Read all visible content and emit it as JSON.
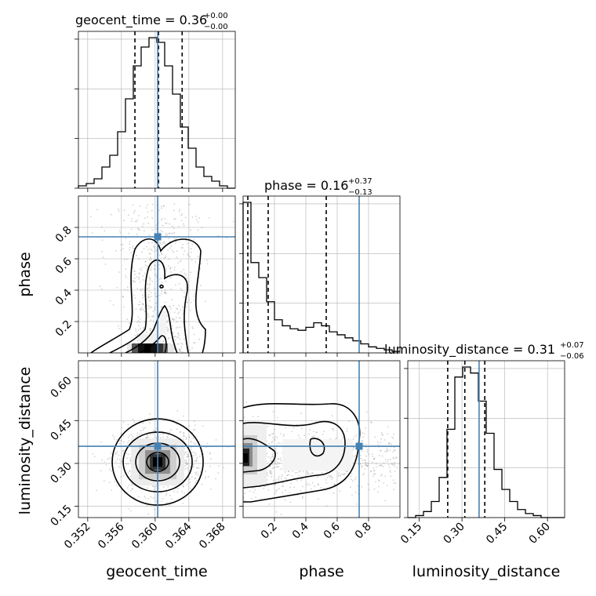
{
  "chart_data": {
    "type": "corner",
    "parameters": [
      "geocent_time",
      "phase",
      "luminosity_distance"
    ],
    "truths": {
      "geocent_time": 0.3603,
      "phase": 0.74,
      "luminosity_distance": 0.36
    },
    "colors": {
      "truth": "#4682b4",
      "hist": "#000000",
      "grid": "#b0b0b0",
      "points": "#7f7f7f"
    },
    "titles": [
      {
        "param": "geocent_time",
        "prefix": "geocent_time = 0.36",
        "sup": "+0.00",
        "sub": "−0.00"
      },
      {
        "param": "phase",
        "prefix": "phase = 0.16",
        "sup": "+0.37",
        "sub": "−0.13"
      },
      {
        "param": "luminosity_distance",
        "prefix": "luminosity_distance = 0.31",
        "sup": "+0.07",
        "sub": "−0.06"
      }
    ],
    "axis_labels": {
      "x": [
        "geocent_time",
        "phase",
        "luminosity_distance"
      ],
      "y": [
        "phase",
        "luminosity_distance"
      ]
    },
    "ranges": {
      "geocent_time": [
        0.3509,
        0.3695
      ],
      "phase": [
        0.0,
        1.0
      ],
      "luminosity_distance": [
        0.11,
        0.66
      ]
    },
    "ticks": {
      "geocent_time": [
        "0.352",
        "0.356",
        "0.360",
        "0.364",
        "0.368"
      ],
      "phase_x": [
        "0.2",
        "0.4",
        "0.6",
        "0.8"
      ],
      "phase_y": [
        "0.2",
        "0.4",
        "0.6",
        "0.8"
      ],
      "luminosity_distance": [
        "0.15",
        "0.30",
        "0.45",
        "0.60"
      ]
    },
    "quantiles": {
      "geocent_time": [
        0.3576,
        0.3604,
        0.3632
      ],
      "phase": [
        0.03,
        0.16,
        0.53
      ],
      "luminosity_distance": [
        0.25,
        0.31,
        0.38
      ]
    },
    "histograms": {
      "geocent_time": {
        "edges_start": 0.3509,
        "bin_width": 0.00093,
        "counts": [
          1,
          2,
          4,
          9,
          14,
          24,
          38,
          52,
          60,
          64,
          62,
          52,
          40,
          26,
          17,
          9,
          5,
          3,
          1,
          0
        ]
      },
      "phase": {
        "edges_start": 0.0,
        "bin_width": 0.05,
        "counts": [
          100,
          60,
          50,
          34,
          22,
          18,
          16,
          15,
          17,
          20,
          18,
          14,
          12,
          10,
          8,
          6,
          4,
          3,
          2,
          1
        ]
      },
      "luminosity_distance": {
        "edges_start": 0.11,
        "bin_width": 0.0275,
        "counts": [
          0,
          1,
          3,
          8,
          20,
          44,
          70,
          75,
          72,
          58,
          42,
          24,
          14,
          8,
          4,
          2,
          1,
          0,
          0,
          0
        ]
      }
    }
  }
}
